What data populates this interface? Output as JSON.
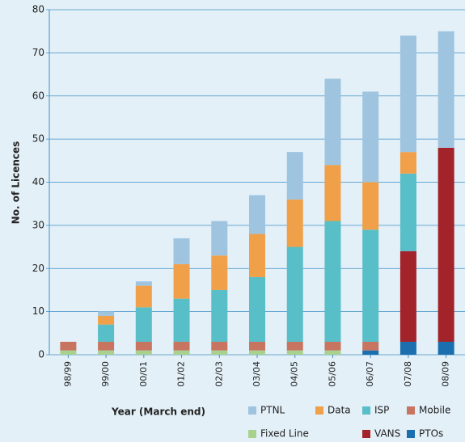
{
  "chart_data": {
    "type": "bar",
    "stacked": true,
    "ylabel": "No. of Licences",
    "xlabel": "Year (March end)",
    "categories": [
      "98/99",
      "99/00",
      "00/01",
      "01/02",
      "02/03",
      "03/04",
      "04/05",
      "05/06",
      "06/07",
      "07/08",
      "08/09"
    ],
    "series": [
      {
        "name": "PTOs",
        "color": "#1b6fae",
        "values": [
          0,
          0,
          0,
          0,
          0,
          0,
          0,
          0,
          1,
          3,
          3
        ]
      },
      {
        "name": "Fixed Line",
        "color": "#a9d18e",
        "values": [
          1,
          1,
          1,
          1,
          1,
          1,
          1,
          1,
          0,
          0,
          0
        ]
      },
      {
        "name": "Mobile",
        "color": "#c77461",
        "values": [
          2,
          2,
          2,
          2,
          2,
          2,
          2,
          2,
          2,
          0,
          0
        ]
      },
      {
        "name": "VANS",
        "color": "#a3232b",
        "values": [
          0,
          0,
          0,
          0,
          0,
          0,
          0,
          0,
          0,
          21,
          45
        ]
      },
      {
        "name": "ISP",
        "color": "#58bec7",
        "values": [
          0,
          4,
          8,
          10,
          12,
          15,
          22,
          28,
          26,
          18,
          0
        ]
      },
      {
        "name": "Data",
        "color": "#f0a049",
        "values": [
          0,
          2,
          5,
          8,
          8,
          10,
          11,
          13,
          11,
          5,
          0
        ]
      },
      {
        "name": "PTNL",
        "color": "#9fc4df",
        "values": [
          0,
          1,
          1,
          6,
          8,
          9,
          11,
          20,
          21,
          27,
          27
        ]
      }
    ],
    "ylim": [
      0,
      80
    ],
    "yticks": [
      0,
      10,
      20,
      30,
      40,
      50,
      60,
      70,
      80
    ],
    "grid": true
  }
}
